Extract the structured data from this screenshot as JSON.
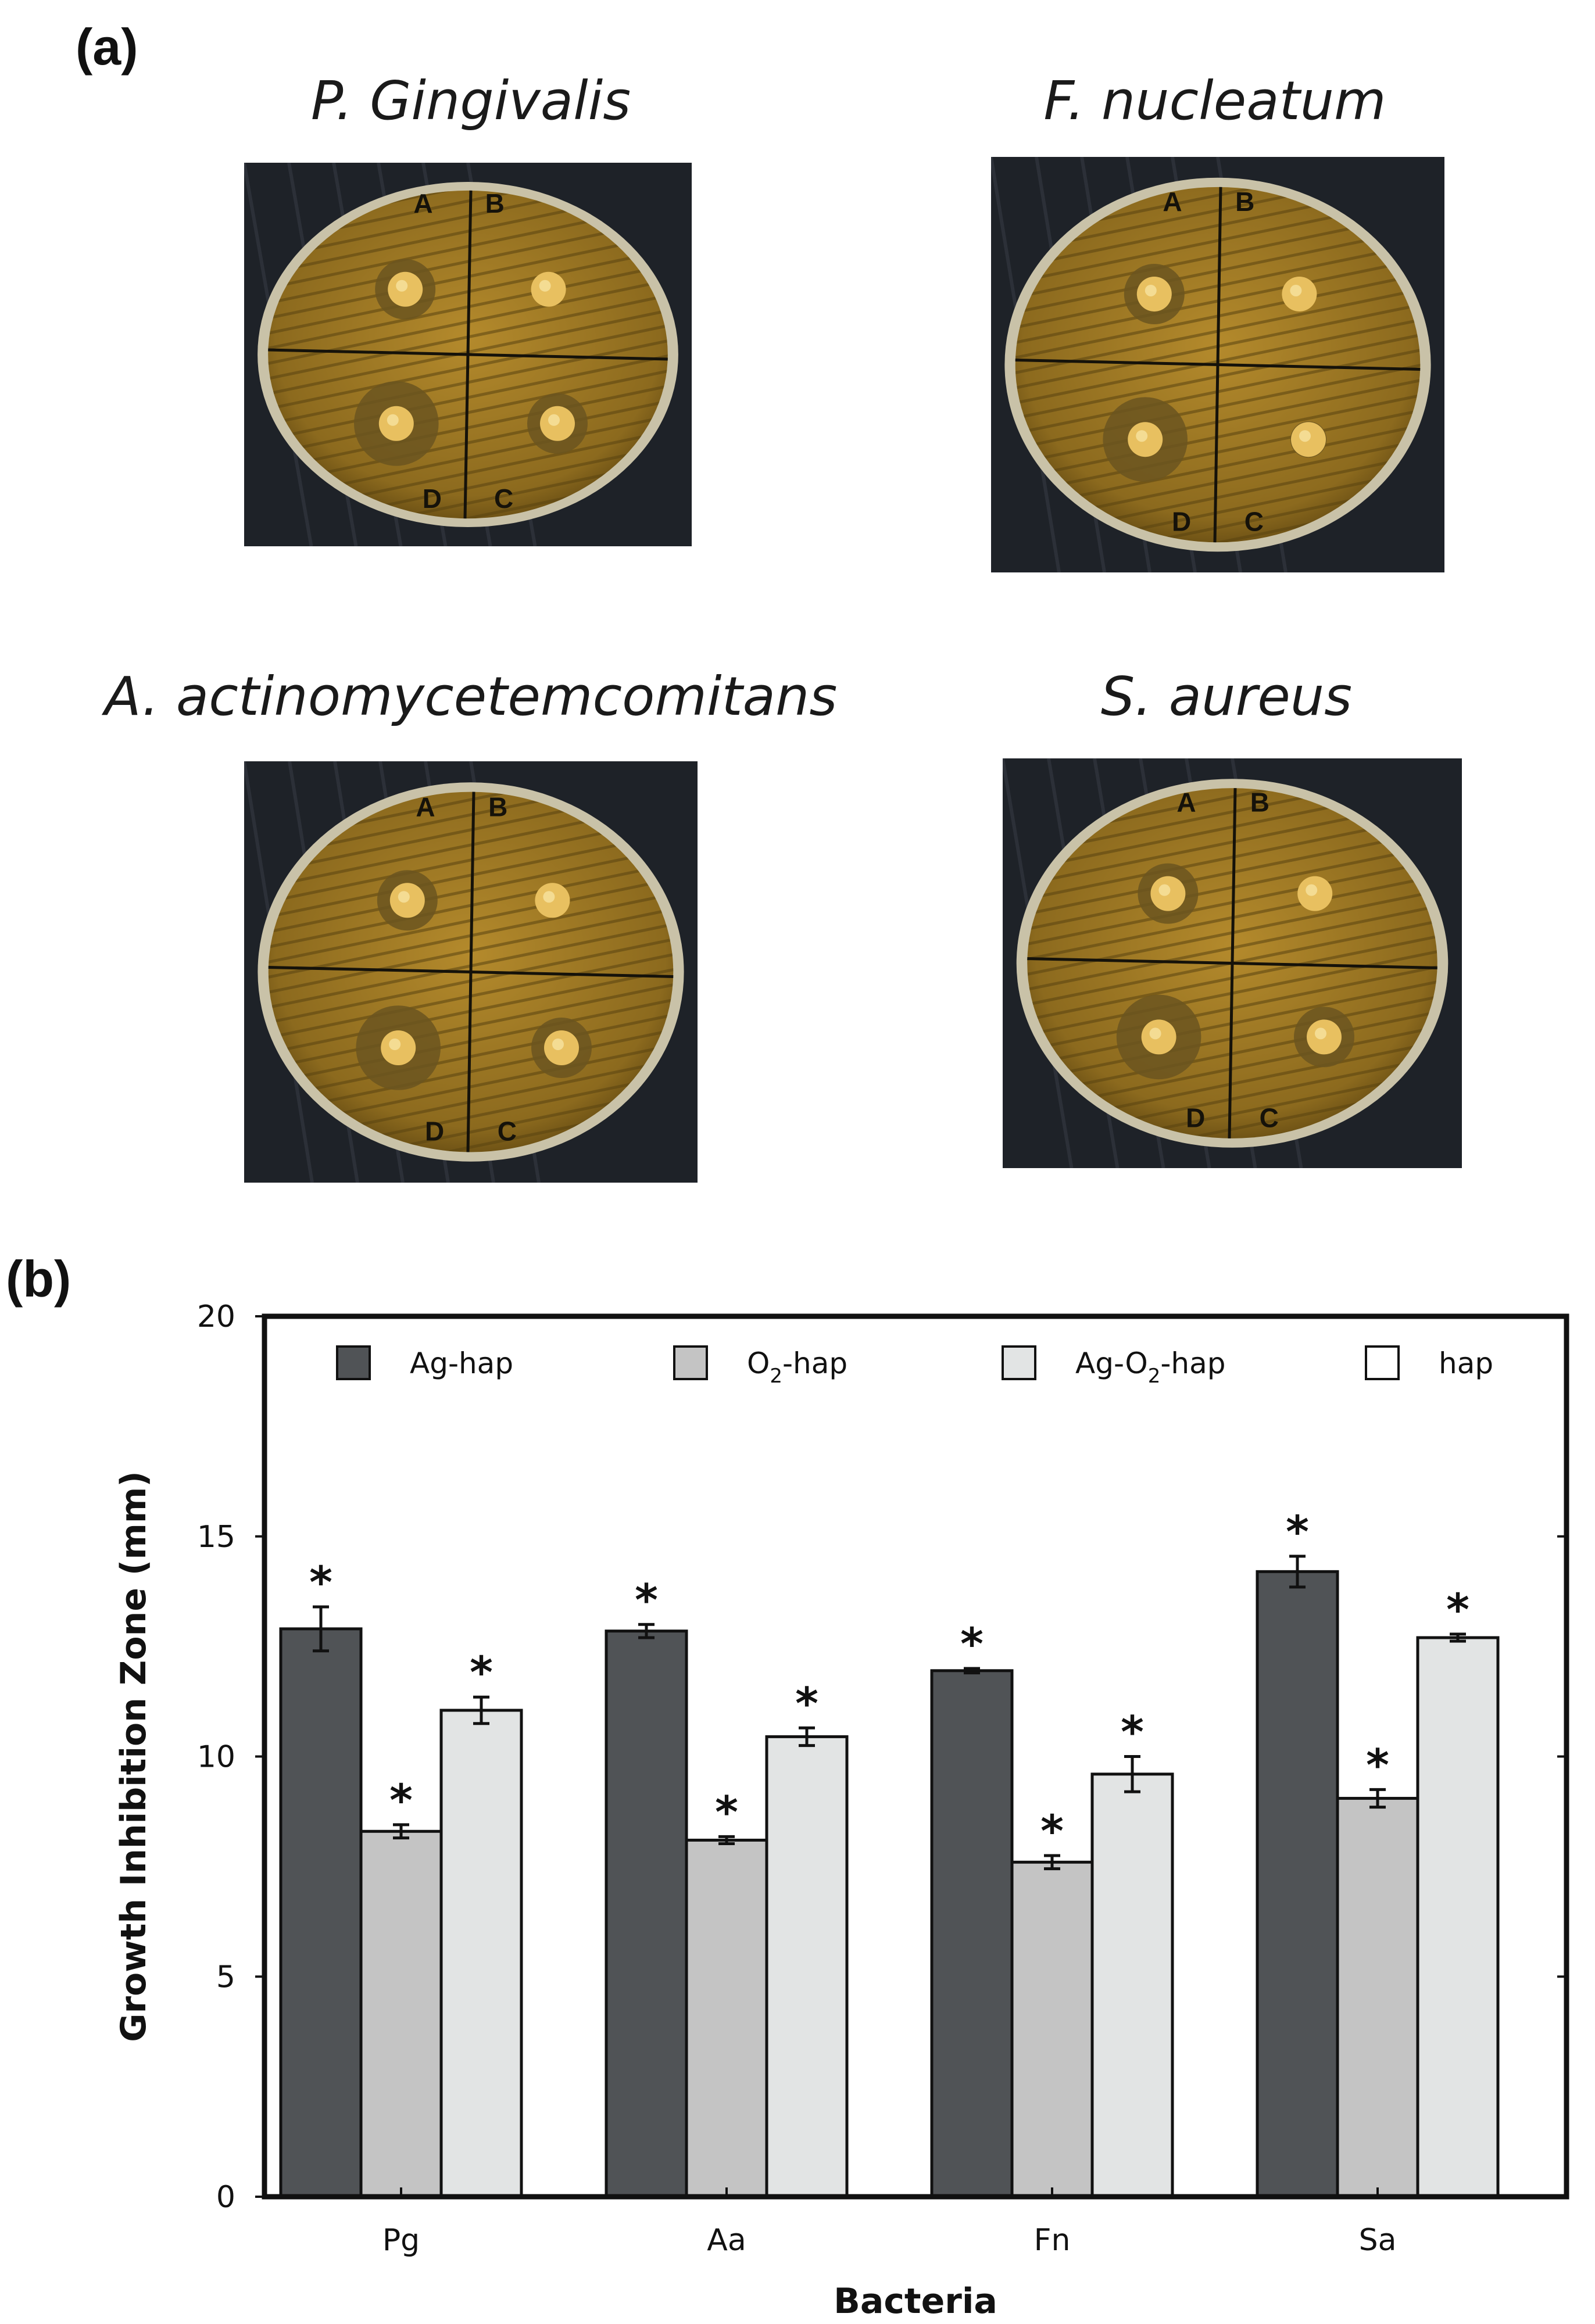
{
  "panel_a": {
    "label": "(a)",
    "plates": [
      {
        "species": "P. Gingivalis",
        "sectors": [
          "A",
          "B",
          "C",
          "D"
        ]
      },
      {
        "species": "F. nucleatum",
        "sectors": [
          "A",
          "B",
          "C",
          "D"
        ]
      },
      {
        "species": "A. actinomycetemcomitans",
        "sectors": [
          "A",
          "B",
          "C",
          "D"
        ]
      },
      {
        "species": "S. aureus",
        "sectors": [
          "A",
          "B",
          "C",
          "D"
        ]
      }
    ]
  },
  "panel_b": {
    "label": "(b)"
  },
  "chart_data": {
    "type": "bar",
    "categories": [
      "Pg",
      "Aa",
      "Fn",
      "Sa"
    ],
    "xlabel": "Bacteria",
    "ylabel": "Growth Inhibition Zone (mm)",
    "ylim": [
      0,
      20
    ],
    "yticks": [
      0,
      5,
      10,
      15,
      20
    ],
    "legend_placement": "top",
    "series": [
      {
        "name": "Ag-hap",
        "label_main": "Ag-hap",
        "color": "#505356",
        "values": [
          12.9,
          12.85,
          11.95,
          14.2
        ],
        "errors": [
          0.5,
          0.15,
          0.05,
          0.35
        ]
      },
      {
        "name": "O2-hap",
        "label_main": "O",
        "label_sub": "2",
        "label_tail": "-hap",
        "color": "#c4c4c4",
        "values": [
          8.3,
          8.1,
          7.6,
          9.05
        ],
        "errors": [
          0.15,
          0.08,
          0.15,
          0.2
        ]
      },
      {
        "name": "Ag-O2-hap",
        "label_main": "Ag-O",
        "label_sub": "2",
        "label_tail": "-hap",
        "color": "#e2e4e4",
        "values": [
          11.05,
          10.45,
          9.6,
          12.7
        ],
        "errors": [
          0.3,
          0.2,
          0.4,
          0.08
        ]
      },
      {
        "name": "hap",
        "label_main": "hap",
        "color": "#ffffff",
        "values": [
          0,
          0,
          0,
          0
        ],
        "errors": [
          0,
          0,
          0,
          0
        ]
      }
    ],
    "significance_marker": "*",
    "significant_series": [
      "Ag-hap",
      "O2-hap",
      "Ag-O2-hap"
    ]
  }
}
